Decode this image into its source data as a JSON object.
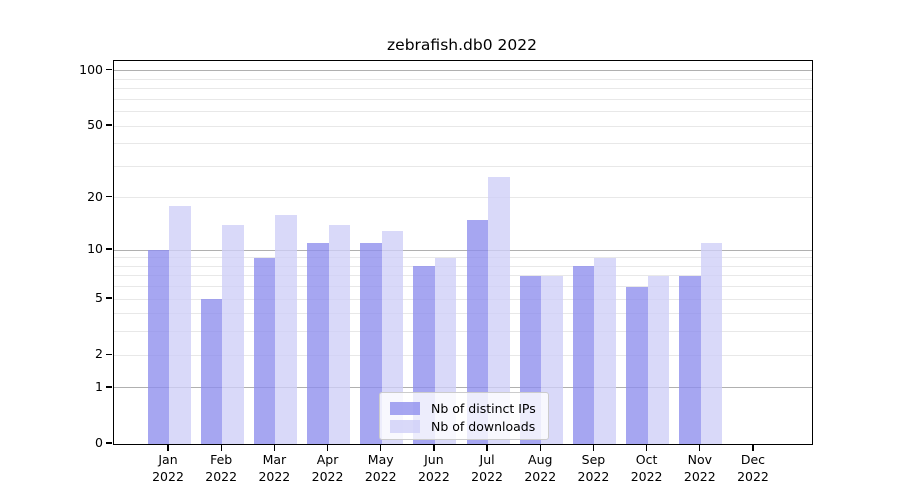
{
  "title": "zebrafish.db0 2022",
  "chart_data": {
    "type": "bar",
    "months": [
      "Jan",
      "Feb",
      "Mar",
      "Apr",
      "May",
      "Jun",
      "Jul",
      "Aug",
      "Sep",
      "Oct",
      "Nov",
      "Dec"
    ],
    "year": "2022",
    "categories": [
      "Jan 2022",
      "Feb 2022",
      "Mar 2022",
      "Apr 2022",
      "May 2022",
      "Jun 2022",
      "Jul 2022",
      "Aug 2022",
      "Sep 2022",
      "Oct 2022",
      "Nov 2022",
      "Dec 2022"
    ],
    "series": [
      {
        "name": "Nb of distinct IPs",
        "values": [
          10,
          5,
          9,
          11,
          11,
          8,
          15,
          7,
          8,
          6,
          7,
          0
        ],
        "fill": "#8d8ded",
        "fill_alpha": 0.78,
        "apparent_color": "#a6a6f1"
      },
      {
        "name": "Nb of downloads",
        "values": [
          18,
          14,
          16,
          14,
          13,
          9,
          26,
          7,
          9,
          7,
          11,
          0
        ],
        "fill": "#cecef7",
        "fill_alpha": 0.78,
        "apparent_color": "#d9d9f9"
      }
    ],
    "yscale": "log1p",
    "ylim": [
      0,
      113
    ],
    "yticks": [
      0,
      1,
      2,
      5,
      10,
      20,
      50,
      100
    ],
    "gridlines_major": [
      1,
      10,
      100
    ],
    "gridlines_minor": [
      2,
      3,
      4,
      5,
      6,
      7,
      8,
      9,
      20,
      30,
      40,
      50,
      60,
      70,
      80,
      90
    ],
    "grid": true,
    "legend_position": "inside-lower-center",
    "xlabel": "",
    "ylabel": ""
  },
  "colors": {
    "background": "#ffffff",
    "spine": "#000000",
    "grid_major": "#b0b0b0",
    "grid_minor": "#e8e8e8",
    "text": "#000000",
    "legend_border": "#cccccc"
  }
}
